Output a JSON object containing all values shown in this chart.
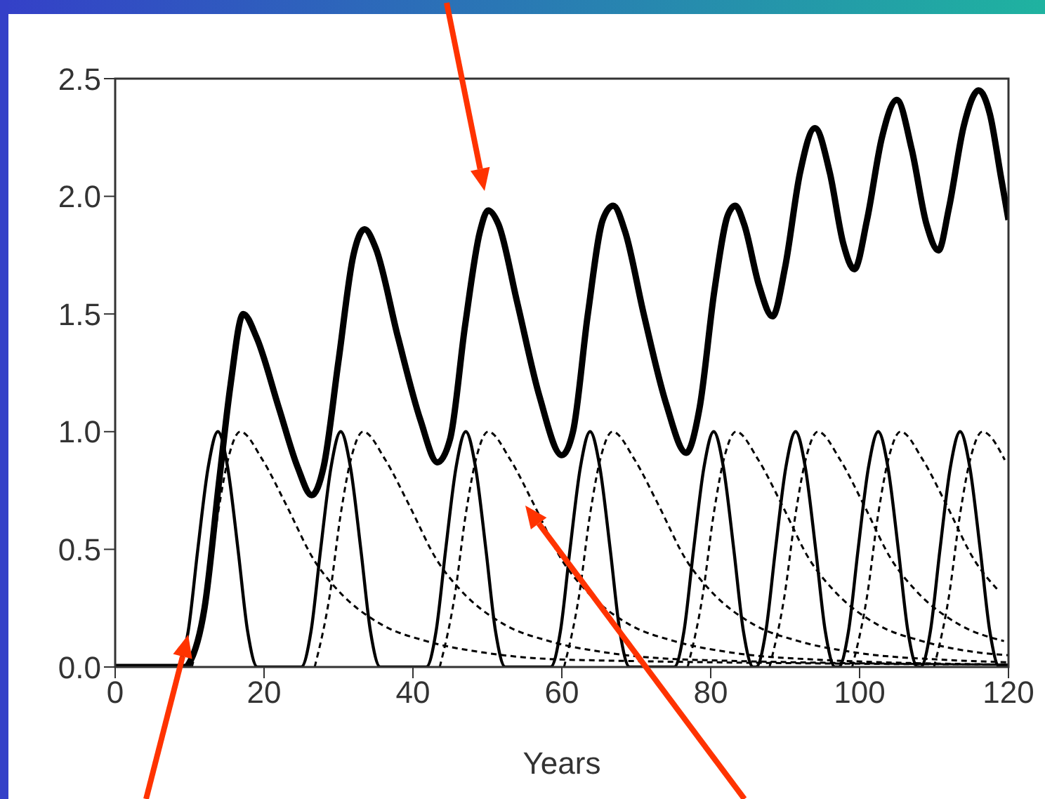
{
  "chart_data": {
    "type": "line",
    "xlabel": "Years",
    "xlim": [
      0,
      120
    ],
    "xticks": [
      0,
      20,
      40,
      60,
      80,
      100,
      120
    ],
    "ylim": [
      0,
      2.5
    ],
    "yticks": [
      {
        "value": 0,
        "label": "0.0"
      },
      {
        "value": 0.5,
        "label": "0.5"
      },
      {
        "value": 1,
        "label": "1.0"
      },
      {
        "value": 1.5,
        "label": "1.5"
      },
      {
        "value": 2,
        "label": "2.0"
      },
      {
        "value": 2.5,
        "label": "2.5"
      }
    ],
    "grid": false,
    "legend": false,
    "series": [
      {
        "color": "#000000",
        "x": [
          0,
          9.5,
          10,
          12,
          14,
          15.5,
          17.2,
          19,
          22,
          24.5,
          26.4,
          28,
          30,
          32,
          33.5,
          35,
          38,
          41,
          43.3,
          45,
          47,
          49,
          50.1,
          51.5,
          54,
          57,
          60,
          61.5,
          63.5,
          65.5,
          66.9,
          68.5,
          71,
          74,
          76.7,
          78.5,
          80.5,
          82.3,
          83.3,
          84.5,
          86.5,
          88.3,
          90,
          92,
          94,
          96,
          97.8,
          99.3,
          101,
          103,
          105,
          107,
          109,
          110.6,
          112,
          114,
          116,
          117.5,
          119,
          120
        ],
        "values": [
          0,
          0,
          0.02,
          0.25,
          0.8,
          1.2,
          1.5,
          1.4,
          1.1,
          0.85,
          0.73,
          0.85,
          1.3,
          1.75,
          1.86,
          1.78,
          1.4,
          1.05,
          0.87,
          0.97,
          1.45,
          1.85,
          1.94,
          1.88,
          1.55,
          1.15,
          0.9,
          1.0,
          1.5,
          1.9,
          1.96,
          1.85,
          1.5,
          1.12,
          0.91,
          1.1,
          1.6,
          1.92,
          1.96,
          1.88,
          1.62,
          1.49,
          1.7,
          2.1,
          2.29,
          2.1,
          1.8,
          1.69,
          1.9,
          2.25,
          2.41,
          2.2,
          1.88,
          1.77,
          1.95,
          2.3,
          2.45,
          2.35,
          2.08,
          1.9
        ]
      },
      {
        "color": "#000000",
        "x": [
          8.5,
          9.8,
          11.1,
          12.5,
          13.8,
          15.1,
          16.5,
          17.8,
          19.1,
          25,
          26.3,
          27.6,
          29,
          30.3,
          31.6,
          33,
          34.3,
          35.6,
          41.8,
          43.1,
          44.4,
          45.8,
          47.1,
          48.4,
          49.8,
          51.1,
          52.4,
          58.5,
          59.8,
          61.1,
          62.5,
          63.8,
          65.1,
          66.5,
          67.8,
          69.1,
          75.1,
          76.4,
          77.7,
          79.1,
          80.4,
          81.7,
          83.1,
          84.4,
          85.7,
          86.1,
          87.4,
          88.7,
          90.1,
          91.4,
          92.7,
          94.1,
          95.4,
          96.7,
          97.2,
          98.5,
          99.8,
          101.2,
          102.5,
          103.8,
          105.2,
          106.5,
          107.8,
          108.2,
          109.5,
          110.8,
          112.2,
          113.5,
          114.8,
          116.2,
          117.5,
          118.8,
          120
        ],
        "values": [
          0,
          0.15,
          0.5,
          0.85,
          1,
          0.85,
          0.5,
          0.15,
          0,
          0,
          0.15,
          0.5,
          0.85,
          1,
          0.85,
          0.5,
          0.15,
          0,
          0,
          0.15,
          0.5,
          0.85,
          1,
          0.85,
          0.5,
          0.15,
          0,
          0,
          0.15,
          0.5,
          0.85,
          1,
          0.85,
          0.5,
          0.15,
          0,
          0,
          0.15,
          0.5,
          0.85,
          1,
          0.85,
          0.5,
          0.15,
          0,
          0,
          0.15,
          0.5,
          0.85,
          1,
          0.85,
          0.5,
          0.15,
          0,
          0,
          0.15,
          0.5,
          0.85,
          1,
          0.85,
          0.5,
          0.15,
          0,
          0,
          0.15,
          0.5,
          0.85,
          1,
          0.85,
          0.5,
          0.15,
          0,
          0
        ]
      },
      {
        "color": "#000000",
        "line_style": "dashed",
        "x": [
          10.3,
          12.3,
          13.8,
          15.3,
          16.8,
          19.8,
          22.8,
          26.8,
          29.8,
          35.8,
          41.8,
          49.8,
          61.8,
          120
        ],
        "values": [
          0,
          0.3,
          0.65,
          0.9,
          1,
          0.88,
          0.7,
          0.45,
          0.33,
          0.18,
          0.11,
          0.06,
          0.03,
          0.01
        ]
      },
      {
        "color": "#000000",
        "line_style": "dashed",
        "x": [
          26.8,
          28.8,
          30.3,
          31.8,
          33.3,
          36.3,
          39.3,
          43.3,
          46.3,
          52.3,
          58.3,
          66.3,
          78.3,
          120
        ],
        "values": [
          0,
          0.3,
          0.65,
          0.9,
          1,
          0.88,
          0.7,
          0.45,
          0.33,
          0.18,
          0.11,
          0.06,
          0.03,
          0.01
        ]
      },
      {
        "color": "#000000",
        "line_style": "dashed",
        "x": [
          43.6,
          45.6,
          47.1,
          48.6,
          50.1,
          53.1,
          56.1,
          60.1,
          63.1,
          69.1,
          75.1,
          83.1,
          95.1,
          120
        ],
        "values": [
          0,
          0.3,
          0.65,
          0.9,
          1,
          0.88,
          0.7,
          0.45,
          0.33,
          0.18,
          0.11,
          0.06,
          0.03,
          0.01
        ]
      },
      {
        "color": "#000000",
        "line_style": "dashed",
        "x": [
          60.3,
          62.3,
          63.8,
          65.3,
          66.8,
          69.8,
          72.8,
          76.8,
          79.8,
          85.8,
          91.8,
          99.8,
          111.8,
          120
        ],
        "values": [
          0,
          0.3,
          0.65,
          0.9,
          1,
          0.88,
          0.7,
          0.45,
          0.33,
          0.18,
          0.11,
          0.06,
          0.03,
          0.02
        ]
      },
      {
        "color": "#000000",
        "line_style": "dashed",
        "x": [
          76.9,
          78.9,
          80.4,
          81.9,
          83.4,
          86.4,
          89.4,
          93.4,
          96.4,
          102.4,
          108.4,
          116.4,
          120
        ],
        "values": [
          0,
          0.3,
          0.65,
          0.9,
          1,
          0.88,
          0.7,
          0.45,
          0.33,
          0.18,
          0.11,
          0.06,
          0.05
        ]
      },
      {
        "color": "#000000",
        "line_style": "dashed",
        "x": [
          87.9,
          89.9,
          91.4,
          92.9,
          94.4,
          97.4,
          100.4,
          104.4,
          107.4,
          113.4,
          119.4
        ],
        "values": [
          0,
          0.3,
          0.65,
          0.9,
          1,
          0.88,
          0.7,
          0.45,
          0.33,
          0.18,
          0.11
        ]
      },
      {
        "color": "#000000",
        "line_style": "dashed",
        "x": [
          99,
          101,
          102.5,
          104,
          105.5,
          108.5,
          111.5,
          115.5,
          118.5
        ],
        "values": [
          0,
          0.3,
          0.65,
          0.9,
          1,
          0.88,
          0.7,
          0.45,
          0.33
        ]
      },
      {
        "color": "#000000",
        "line_style": "dashed",
        "x": [
          110,
          112,
          113.5,
          115,
          116.5,
          119.5
        ],
        "values": [
          0,
          0.3,
          0.65,
          0.9,
          1,
          0.88
        ]
      }
    ]
  }
}
